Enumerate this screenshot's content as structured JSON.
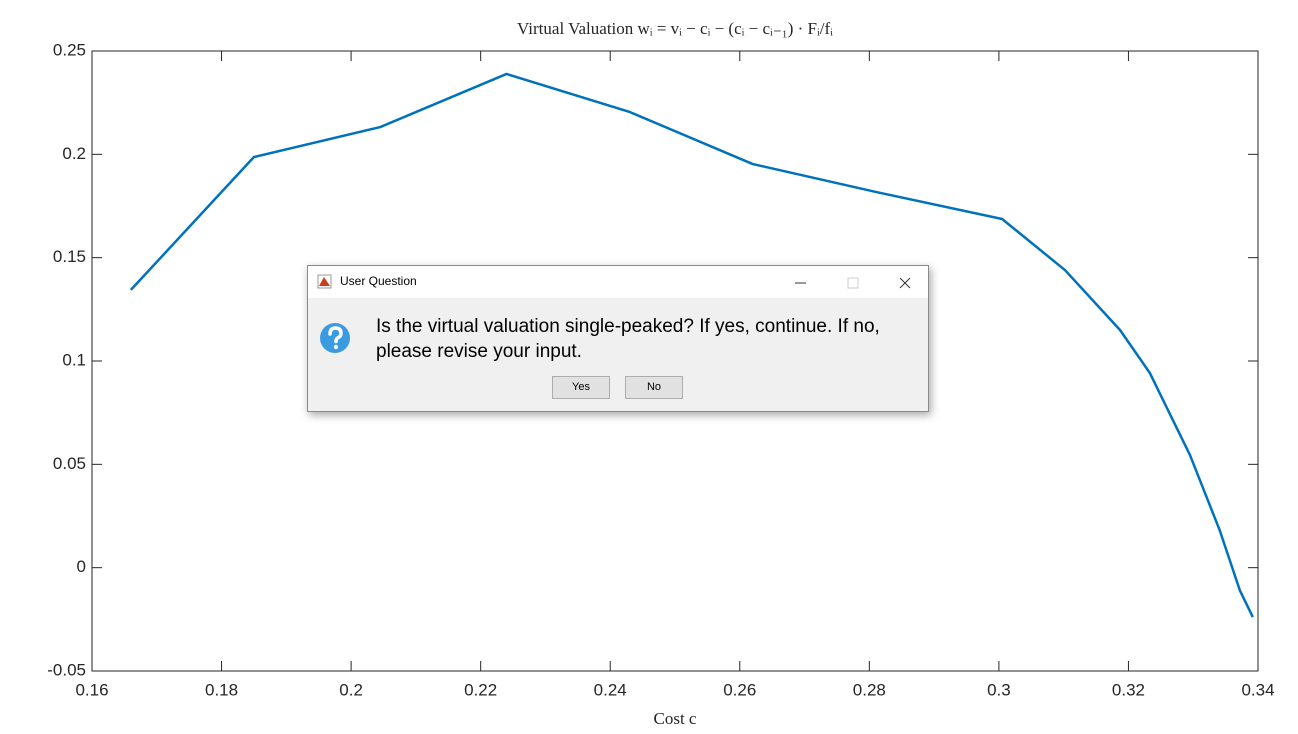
{
  "chart_data": {
    "type": "line",
    "title": "Virtual Valuation wᵢ = vᵢ − cᵢ − (cᵢ − cᵢ₋₁) · Fᵢ/fᵢ",
    "x_label": "Cost c",
    "x": [
      0.166,
      0.185,
      0.2045,
      0.224,
      0.243,
      0.262,
      0.281,
      0.3005,
      0.3102,
      0.3187,
      0.3233,
      0.3295,
      0.3341,
      0.3372,
      0.3392
    ],
    "series": [
      {
        "name": "w",
        "color": "#0072bd",
        "values": [
          0.1344,
          0.1987,
          0.2132,
          0.2389,
          0.2205,
          0.1953,
          0.1818,
          0.1687,
          0.144,
          0.115,
          0.0942,
          0.0545,
          0.018,
          -0.011,
          -0.0239
        ]
      }
    ],
    "xlim": [
      0.16,
      0.34
    ],
    "xticks": [
      0.16,
      0.18,
      0.2,
      0.22,
      0.24,
      0.26,
      0.28,
      0.3,
      0.32,
      0.34
    ],
    "ylim": [
      -0.05,
      0.25
    ],
    "yticks": [
      -0.05,
      0,
      0.05,
      0.1,
      0.15,
      0.2,
      0.25
    ]
  },
  "dialog": {
    "title": "User Question",
    "message": "Is the virtual valuation single-peaked? If yes, continue. If no, please revise your input.",
    "buttons": [
      "Yes",
      "No"
    ]
  }
}
